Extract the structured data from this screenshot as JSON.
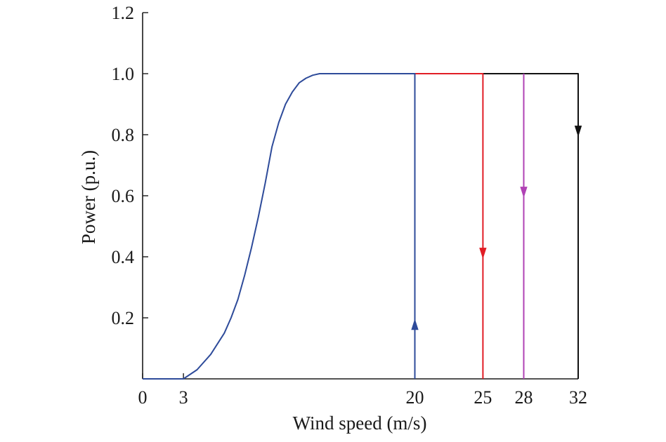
{
  "chart_data": {
    "type": "line",
    "title": "",
    "xlabel": "Wind speed (m/s)",
    "ylabel": "Power (p.u.)",
    "xlim": [
      0,
      32
    ],
    "ylim": [
      0,
      1.2
    ],
    "x_ticks": [
      0,
      3,
      20,
      25,
      28,
      32
    ],
    "x_tick_labels": [
      "0",
      "3",
      "20",
      "25",
      "28",
      "32"
    ],
    "y_ticks": [
      0.2,
      0.4,
      0.6,
      0.8,
      1.0,
      1.2
    ],
    "y_tick_labels": [
      "0.2",
      "0.4",
      "0.6",
      "0.8",
      "1.0",
      "1.2"
    ],
    "grid": false,
    "legend": "none",
    "series": [
      {
        "color": "#2e4b9a",
        "x": [
          0,
          3,
          4,
          5,
          6,
          6.5,
          7,
          7.5,
          8,
          8.5,
          9,
          9.5,
          10,
          10.5,
          11,
          11.5,
          12,
          12.5,
          13,
          14,
          15,
          16,
          17,
          18,
          19,
          20,
          20,
          20
        ],
        "y": [
          0,
          0,
          0.03,
          0.08,
          0.15,
          0.2,
          0.26,
          0.34,
          0.43,
          0.53,
          0.64,
          0.76,
          0.84,
          0.9,
          0.94,
          0.97,
          0.985,
          0.995,
          1.0,
          1.0,
          1.0,
          1.0,
          1.0,
          1.0,
          1.0,
          1.0,
          0.18,
          0
        ],
        "arrow": {
          "x": 20,
          "y": 0.18,
          "direction": "up"
        }
      },
      {
        "color": "#e11d25",
        "x": [
          20,
          25,
          25
        ],
        "y": [
          1.0,
          1.0,
          0
        ],
        "arrow": {
          "x": 25,
          "y": 0.41,
          "direction": "down"
        }
      },
      {
        "color": "#b042b5",
        "x": [
          28,
          28
        ],
        "y": [
          1.0,
          0
        ],
        "arrow": {
          "x": 28,
          "y": 0.61,
          "direction": "down"
        }
      },
      {
        "color": "#111111",
        "x": [
          25,
          32,
          32
        ],
        "y": [
          1.0,
          1.0,
          0
        ],
        "arrow": {
          "x": 32,
          "y": 0.81,
          "direction": "down"
        }
      }
    ]
  }
}
